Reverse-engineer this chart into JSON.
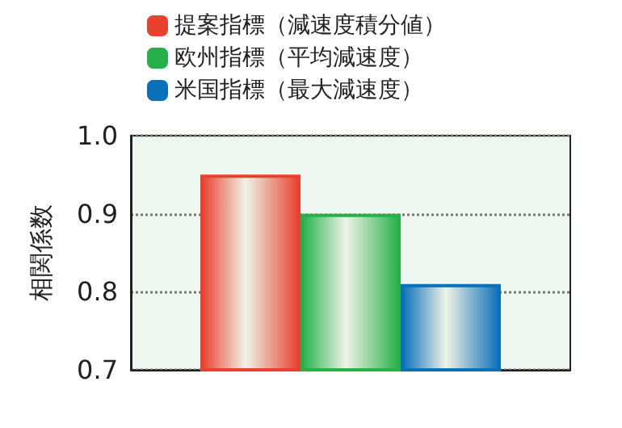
{
  "chart_data": {
    "type": "bar",
    "ylabel": "相関係数",
    "categories": [
      null
    ],
    "series": [
      {
        "name": "提案指標（減速度積分値）",
        "color": "#e8412f",
        "values": [
          0.95
        ]
      },
      {
        "name": "欧州指標（平均減速度）",
        "color": "#25b04a",
        "values": [
          0.9
        ]
      },
      {
        "name": "米国指標（最大減速度）",
        "color": "#0a70b8",
        "values": [
          0.81
        ]
      }
    ],
    "ylim": [
      0.7,
      1.0
    ],
    "yticks": [
      {
        "value": 0.7,
        "label": "0.7"
      },
      {
        "value": 0.8,
        "label": "0.8"
      },
      {
        "value": 0.9,
        "label": "0.9"
      },
      {
        "value": 1.0,
        "label": "1.0"
      }
    ],
    "grid": "y",
    "legend": "top"
  }
}
